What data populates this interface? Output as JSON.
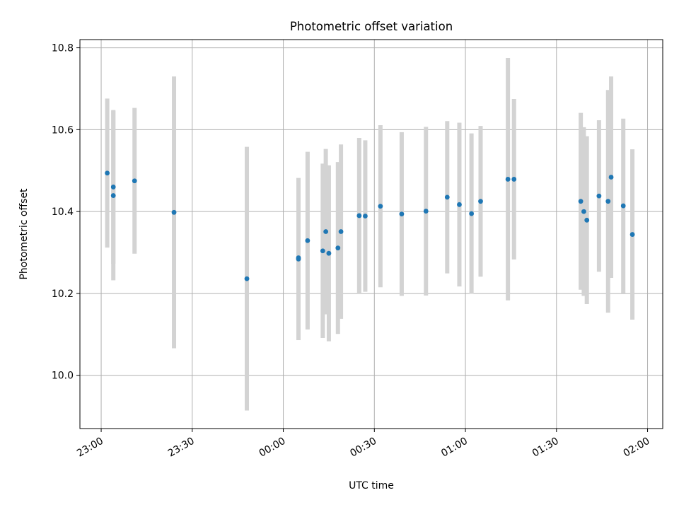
{
  "chart_data": {
    "type": "scatter",
    "title": "Photometric offset variation",
    "xlabel": "UTC time",
    "ylabel": "Photometric offset",
    "grid": true,
    "x_tick_labels": [
      "23:00",
      "23:30",
      "00:00",
      "00:30",
      "01:00",
      "01:30",
      "02:00"
    ],
    "x_tick_times": [
      "23:00",
      "23:30",
      "00:00",
      "00:30",
      "01:00",
      "01:30",
      "02:00"
    ],
    "y_ticks": [
      10.0,
      10.2,
      10.4,
      10.6,
      10.8
    ],
    "y_tick_labels": [
      "10.0",
      "10.2",
      "10.4",
      "10.6",
      "10.8"
    ],
    "xlim": [
      "22:53",
      "02:05"
    ],
    "ylim": [
      9.87,
      10.82
    ],
    "marker_color": "#1f77b4",
    "errorbar_color": "#d3d3d3",
    "series": [
      {
        "points": [
          {
            "t": "23:02",
            "y": 10.494,
            "err": 0.182
          },
          {
            "t": "23:04",
            "y": 10.46,
            "err": 0.188
          },
          {
            "t": "23:04",
            "y": 10.439,
            "err": 0.207
          },
          {
            "t": "23:11",
            "y": 10.475,
            "err": 0.178
          },
          {
            "t": "23:24",
            "y": 10.398,
            "err": 0.332
          },
          {
            "t": "23:48",
            "y": 10.236,
            "err": 0.322
          },
          {
            "t": "00:05",
            "y": 10.287,
            "err": 0.176
          },
          {
            "t": "00:05",
            "y": 10.284,
            "err": 0.198
          },
          {
            "t": "00:08",
            "y": 10.329,
            "err": 0.217
          },
          {
            "t": "00:13",
            "y": 10.304,
            "err": 0.213
          },
          {
            "t": "00:14",
            "y": 10.351,
            "err": 0.202
          },
          {
            "t": "00:15",
            "y": 10.298,
            "err": 0.215
          },
          {
            "t": "00:18",
            "y": 10.311,
            "err": 0.21
          },
          {
            "t": "00:19",
            "y": 10.351,
            "err": 0.213
          },
          {
            "t": "00:25",
            "y": 10.39,
            "err": 0.19
          },
          {
            "t": "00:27",
            "y": 10.389,
            "err": 0.185
          },
          {
            "t": "00:32",
            "y": 10.413,
            "err": 0.198
          },
          {
            "t": "00:39",
            "y": 10.394,
            "err": 0.2
          },
          {
            "t": "00:47",
            "y": 10.401,
            "err": 0.206
          },
          {
            "t": "00:54",
            "y": 10.435,
            "err": 0.186
          },
          {
            "t": "00:58",
            "y": 10.417,
            "err": 0.2
          },
          {
            "t": "01:02",
            "y": 10.395,
            "err": 0.196
          },
          {
            "t": "01:05",
            "y": 10.425,
            "err": 0.184
          },
          {
            "t": "01:14",
            "y": 10.479,
            "err": 0.296
          },
          {
            "t": "01:16",
            "y": 10.479,
            "err": 0.196
          },
          {
            "t": "01:38",
            "y": 10.425,
            "err": 0.216
          },
          {
            "t": "01:39",
            "y": 10.4,
            "err": 0.206
          },
          {
            "t": "01:40",
            "y": 10.379,
            "err": 0.205
          },
          {
            "t": "01:44",
            "y": 10.438,
            "err": 0.185
          },
          {
            "t": "01:47",
            "y": 10.425,
            "err": 0.272
          },
          {
            "t": "01:48",
            "y": 10.484,
            "err": 0.246
          },
          {
            "t": "01:52",
            "y": 10.414,
            "err": 0.213
          },
          {
            "t": "01:55",
            "y": 10.344,
            "err": 0.208
          }
        ]
      }
    ]
  }
}
